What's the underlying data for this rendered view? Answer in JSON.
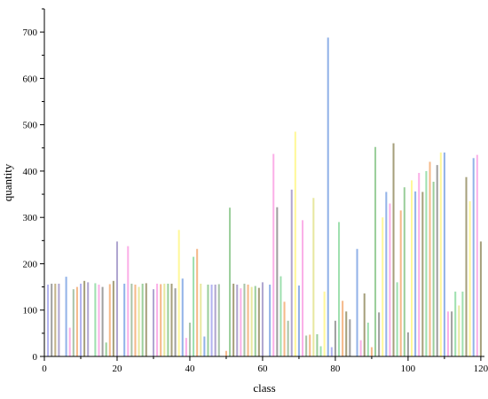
{
  "chart_data": {
    "type": "bar",
    "xlabel": "class",
    "ylabel": "quantity",
    "xlim": [
      0,
      121
    ],
    "ylim": [
      0,
      750
    ],
    "xticks": [
      0,
      20,
      40,
      60,
      80,
      100,
      120
    ],
    "yticks": [
      0,
      100,
      200,
      300,
      400,
      500,
      600,
      700
    ],
    "grid": false,
    "legend": "none",
    "palette": [
      "#b2b3f0",
      "#a0a0a0",
      "#c4b48a",
      "#93b3e8",
      "#fbb0e8",
      "#a9c4a8",
      "#f5b98a",
      "#e8e8a0",
      "#9ccf9c",
      "#a6a07c",
      "#b0a6d0",
      "#fff89a",
      "#9fe0b0"
    ],
    "x": [
      1,
      2,
      3,
      4,
      5,
      6,
      7,
      8,
      9,
      10,
      11,
      12,
      13,
      14,
      15,
      16,
      17,
      18,
      19,
      20,
      21,
      22,
      23,
      24,
      25,
      26,
      27,
      28,
      29,
      30,
      31,
      32,
      33,
      34,
      35,
      36,
      37,
      38,
      39,
      40,
      41,
      42,
      43,
      44,
      45,
      46,
      47,
      48,
      49,
      50,
      51,
      52,
      53,
      54,
      55,
      56,
      57,
      58,
      59,
      60,
      61,
      62,
      63,
      64,
      65,
      66,
      67,
      68,
      69,
      70,
      71,
      72,
      73,
      74,
      75,
      76,
      77,
      78,
      79,
      80,
      81,
      82,
      83,
      84,
      85,
      86,
      87,
      88,
      89,
      90,
      91,
      92,
      93,
      94,
      95,
      96,
      97,
      98,
      99,
      100,
      101,
      102,
      103,
      104,
      105,
      106,
      107,
      108,
      109,
      110,
      111,
      112,
      113,
      114,
      115,
      116,
      117,
      118,
      119,
      120
    ],
    "values": [
      155,
      157,
      157,
      157,
      0,
      172,
      62,
      145,
      150,
      157,
      163,
      160,
      0,
      158,
      155,
      150,
      30,
      156,
      163,
      248,
      0,
      157,
      238,
      157,
      155,
      150,
      157,
      158,
      0,
      145,
      157,
      156,
      157,
      157,
      157,
      147,
      273,
      168,
      40,
      73,
      215,
      232,
      157,
      43,
      155,
      155,
      155,
      156,
      0,
      12,
      321,
      157,
      155,
      147,
      157,
      155,
      150,
      152,
      148,
      160,
      0,
      155,
      437,
      322,
      173,
      118,
      77,
      360,
      485,
      153,
      294,
      45,
      47,
      342,
      48,
      22,
      140,
      688,
      20,
      77,
      290,
      120,
      97,
      80,
      0,
      232,
      35,
      136,
      73,
      20,
      452,
      95,
      300,
      355,
      330,
      460,
      160,
      315,
      365,
      52,
      380,
      356,
      396,
      355,
      400,
      420,
      377,
      413,
      440,
      440,
      97,
      97,
      140,
      110,
      140,
      387,
      335,
      428,
      435,
      248
    ],
    "colors": [
      0,
      1,
      2,
      10,
      0,
      3,
      4,
      5,
      6,
      0,
      9,
      10,
      0,
      12,
      4,
      1,
      8,
      6,
      9,
      10,
      0,
      3,
      4,
      5,
      6,
      7,
      8,
      9,
      0,
      10,
      4,
      6,
      7,
      8,
      9,
      1,
      11,
      3,
      4,
      5,
      12,
      6,
      7,
      3,
      8,
      0,
      10,
      5,
      0,
      6,
      8,
      9,
      10,
      4,
      5,
      6,
      7,
      8,
      9,
      10,
      0,
      3,
      4,
      1,
      12,
      6,
      5,
      10,
      11,
      3,
      4,
      5,
      6,
      7,
      8,
      12,
      11,
      3,
      0,
      1,
      12,
      6,
      9,
      1,
      0,
      3,
      4,
      9,
      12,
      6,
      8,
      1,
      11,
      3,
      4,
      9,
      12,
      6,
      8,
      1,
      11,
      3,
      4,
      9,
      12,
      6,
      8,
      1,
      11,
      3,
      4,
      1,
      12,
      7,
      12,
      9,
      11,
      3,
      4,
      9
    ]
  }
}
